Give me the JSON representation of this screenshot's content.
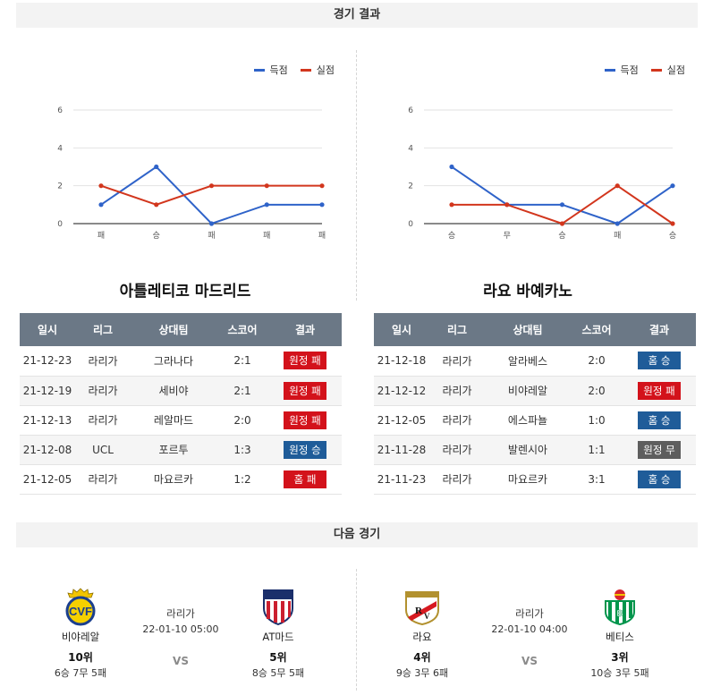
{
  "sections": {
    "results_title": "경기 결과",
    "next_title": "다음 경기"
  },
  "legend": {
    "scored": "득점",
    "conceded": "실점",
    "scored_color": "#2f63c9",
    "conceded_color": "#d2361d"
  },
  "chart_data": [
    {
      "type": "line",
      "categories": [
        "패",
        "승",
        "패",
        "패",
        "패"
      ],
      "series": [
        {
          "name": "득점",
          "values": [
            1,
            3,
            0,
            1,
            1
          ],
          "color": "#2f63c9"
        },
        {
          "name": "실점",
          "values": [
            2,
            1,
            2,
            2,
            2
          ],
          "color": "#d2361d"
        }
      ],
      "yticks": [
        "0",
        "2",
        "4",
        "6"
      ],
      "ylim": [
        0,
        6
      ],
      "legend_position": "top-right",
      "grid": true
    },
    {
      "type": "line",
      "categories": [
        "승",
        "무",
        "승",
        "패",
        "승"
      ],
      "series": [
        {
          "name": "득점",
          "values": [
            3,
            1,
            1,
            0,
            2
          ],
          "color": "#2f63c9"
        },
        {
          "name": "실점",
          "values": [
            1,
            1,
            0,
            2,
            0
          ],
          "color": "#d2361d"
        }
      ],
      "yticks": [
        "0",
        "2",
        "4",
        "6"
      ],
      "ylim": [
        0,
        6
      ],
      "legend_position": "top-right",
      "grid": true
    }
  ],
  "table_headers": [
    "일시",
    "리그",
    "상대팀",
    "스코어",
    "결과"
  ],
  "teams": [
    {
      "title": "아틀레티코 마드리드",
      "rows": [
        {
          "date": "21-12-23",
          "league": "라리가",
          "opponent": "그라나다",
          "score": "2:1",
          "result": "원정 패",
          "type": "loss"
        },
        {
          "date": "21-12-19",
          "league": "라리가",
          "opponent": "세비야",
          "score": "2:1",
          "result": "원정 패",
          "type": "loss"
        },
        {
          "date": "21-12-13",
          "league": "라리가",
          "opponent": "레알마드",
          "score": "2:0",
          "result": "원정 패",
          "type": "loss"
        },
        {
          "date": "21-12-08",
          "league": "UCL",
          "opponent": "포르투",
          "score": "1:3",
          "result": "원정 승",
          "type": "win"
        },
        {
          "date": "21-12-05",
          "league": "라리가",
          "opponent": "마요르카",
          "score": "1:2",
          "result": "홈 패",
          "type": "loss"
        }
      ]
    },
    {
      "title": "라요 바예카노",
      "rows": [
        {
          "date": "21-12-18",
          "league": "라리가",
          "opponent": "알라베스",
          "score": "2:0",
          "result": "홈 승",
          "type": "win"
        },
        {
          "date": "21-12-12",
          "league": "라리가",
          "opponent": "비야레알",
          "score": "2:0",
          "result": "원정 패",
          "type": "loss"
        },
        {
          "date": "21-12-05",
          "league": "라리가",
          "opponent": "에스파뇰",
          "score": "1:0",
          "result": "홈 승",
          "type": "win"
        },
        {
          "date": "21-11-28",
          "league": "라리가",
          "opponent": "발렌시아",
          "score": "1:1",
          "result": "원정 무",
          "type": "draw"
        },
        {
          "date": "21-11-23",
          "league": "라리가",
          "opponent": "마요르카",
          "score": "3:1",
          "result": "홈 승",
          "type": "win"
        }
      ]
    }
  ],
  "next_matches": [
    {
      "league": "라리가",
      "datetime": "22-01-10 05:00",
      "vs": "VS",
      "home": {
        "name": "비야레알",
        "rank": "10위",
        "record": "6승 7무 5패",
        "logo": "villarreal-logo"
      },
      "away": {
        "name": "AT마드",
        "rank": "5위",
        "record": "8승 5무 5패",
        "logo": "atletico-madrid-logo"
      }
    },
    {
      "league": "라리가",
      "datetime": "22-01-10 04:00",
      "vs": "VS",
      "home": {
        "name": "라요",
        "rank": "4위",
        "record": "9승 3무 6패",
        "logo": "rayo-vallecano-logo"
      },
      "away": {
        "name": "베티스",
        "rank": "3위",
        "record": "10승 3무 5패",
        "logo": "real-betis-logo"
      }
    }
  ]
}
